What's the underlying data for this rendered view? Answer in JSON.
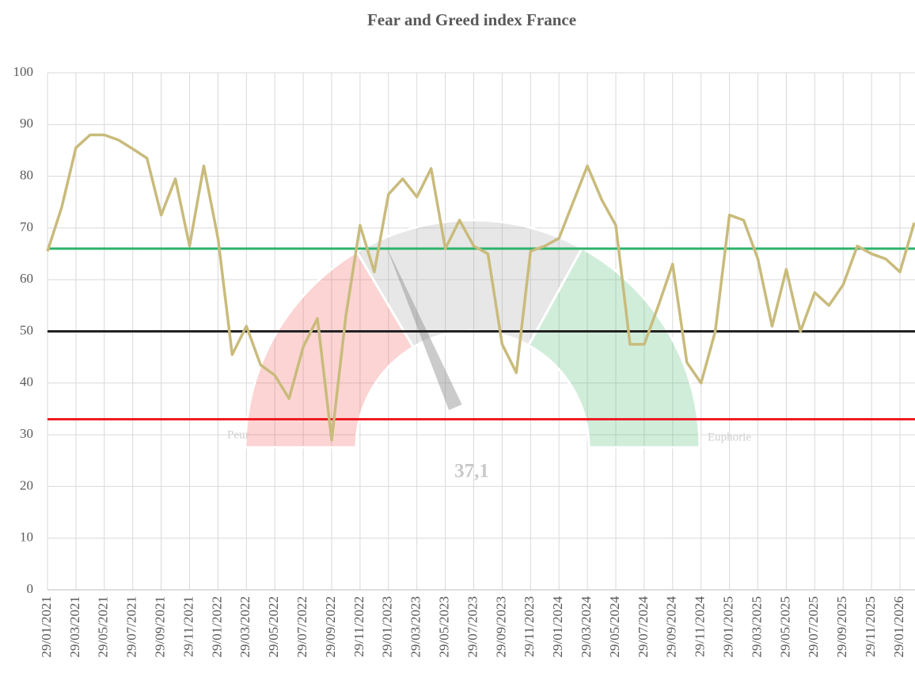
{
  "chart_data": {
    "type": "line",
    "title": "Fear and Greed index France",
    "categories": [
      "29/01/2021",
      null,
      "29/03/2021",
      null,
      "29/05/2021",
      null,
      "29/07/2021",
      null,
      "29/09/2021",
      null,
      "29/11/2021",
      null,
      "29/01/2022",
      null,
      "29/03/2022",
      null,
      "29/05/2022",
      null,
      "29/07/2022",
      null,
      "29/09/2022",
      null,
      "29/11/2022",
      null,
      "29/01/2023",
      null,
      "29/03/2023",
      null,
      "29/05/2023",
      null,
      "29/07/2023",
      null,
      "29/09/2023",
      null,
      "29/11/2023",
      null,
      "29/01/2024",
      null,
      "29/03/2024",
      null,
      "29/05/2024",
      null,
      "29/07/2024",
      null,
      "29/09/2024",
      null,
      "29/11/2024",
      null,
      "29/01/2025",
      null,
      "29/03/2025",
      null,
      "29/05/2025",
      null,
      "29/07/2025",
      null,
      "29/09/2025",
      null,
      "29/11/2025",
      null,
      "29/01/2026",
      null
    ],
    "values": [
      65.5,
      74,
      85.5,
      88,
      88,
      87,
      85.3,
      83.5,
      72.5,
      79.5,
      66.5,
      82,
      68,
      45.5,
      51,
      43.5,
      41.5,
      37,
      47,
      52.5,
      29,
      53,
      70.5,
      61.5,
      76.5,
      79.5,
      76,
      81.5,
      66,
      71.5,
      66.5,
      65,
      47.5,
      42,
      65.5,
      66.5,
      68,
      75,
      82,
      75.5,
      70.5,
      47.5,
      47.5,
      55,
      63,
      44,
      40,
      50,
      72.5,
      71.5,
      64,
      51,
      62,
      50,
      57.5,
      55,
      59,
      66.5,
      65,
      64,
      61.5,
      71
    ],
    "color": "#c9bb7c",
    "ylim": [
      0,
      100
    ],
    "yticks": [
      0,
      10,
      20,
      30,
      40,
      50,
      60,
      70,
      80,
      90,
      100
    ],
    "grid": true,
    "reference_lines": [
      {
        "value": 66,
        "color": "#2cb36b"
      },
      {
        "value": 50,
        "color": "#222222"
      },
      {
        "value": 33,
        "color": "#ee1c25"
      }
    ],
    "gauge": {
      "value": 37.1,
      "value_label": "37,1",
      "min_label": "Peur",
      "max_label": "Euphorie",
      "colors": [
        "#ef5350",
        "#9e9e9e",
        "#43b96a"
      ]
    }
  }
}
